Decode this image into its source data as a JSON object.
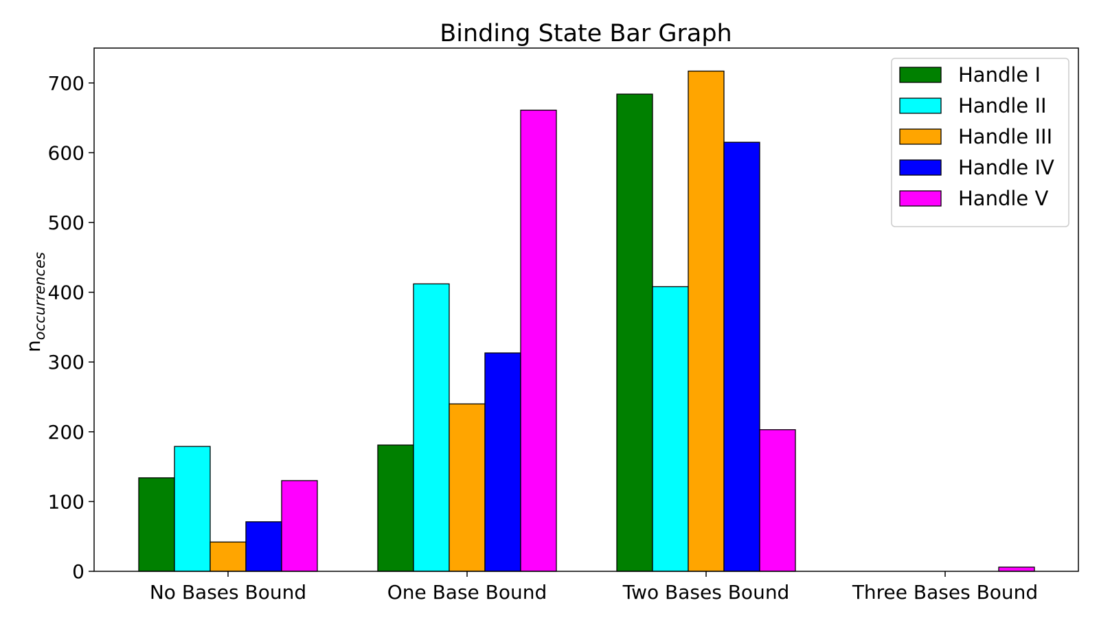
{
  "chart_data": {
    "type": "bar",
    "title": "Binding State Bar Graph",
    "ylabel_main": "n",
    "ylabel_sub": "occurrences",
    "xlabel": "",
    "ylim": [
      0,
      750
    ],
    "yticks": [
      0,
      100,
      200,
      300,
      400,
      500,
      600,
      700
    ],
    "categories": [
      "No Bases Bound",
      "One Base Bound",
      "Two Bases Bound",
      "Three Bases Bound"
    ],
    "series": [
      {
        "name": "Handle I",
        "color": "#008000",
        "values": [
          134,
          181,
          684,
          0
        ]
      },
      {
        "name": "Handle II",
        "color": "#00ffff",
        "values": [
          179,
          412,
          408,
          0
        ]
      },
      {
        "name": "Handle III",
        "color": "#ffa500",
        "values": [
          42,
          240,
          717,
          0
        ]
      },
      {
        "name": "Handle IV",
        "color": "#0000ff",
        "values": [
          71,
          313,
          615,
          0
        ]
      },
      {
        "name": "Handle V",
        "color": "#ff00ff",
        "values": [
          130,
          661,
          203,
          6
        ]
      }
    ],
    "legend_position": "top-right",
    "grid": false
  }
}
